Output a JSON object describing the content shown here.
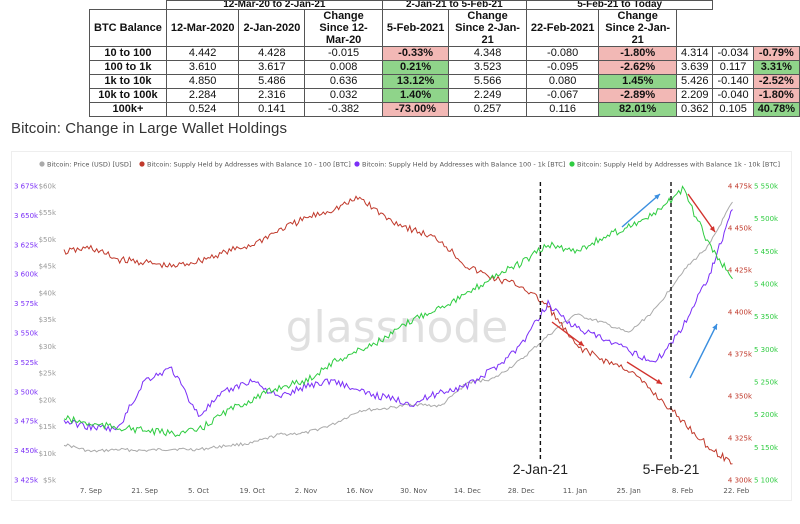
{
  "table": {
    "group_headers": [
      "12-Mar-20 to 2-Jan-21",
      "2-Jan-21 to 5-Feb-21",
      "5-Feb-21 to Today"
    ],
    "column_headers": [
      "BTC Balance",
      "12-Mar-2020",
      "2-Jan-2020",
      "Change Since 12-Mar-20",
      "5-Feb-2021",
      "Change Since 2-Jan-21",
      "22-Feb-2021",
      "Change Since 2-Jan-21"
    ],
    "rows": [
      {
        "balance": "10 to 100",
        "c1": "4.442",
        "c2": "4.428",
        "c3": "-0.015",
        "c4": "-0.33%",
        "c4s": "neg",
        "c5": "4.348",
        "c6": "-0.080",
        "c7": "-1.80%",
        "c7s": "neg",
        "c8": "4.314",
        "c9": "-0.034",
        "c10": "-0.79%",
        "c10s": "neg"
      },
      {
        "balance": "100 to 1k",
        "c1": "3.610",
        "c2": "3.617",
        "c3": "0.008",
        "c4": "0.21%",
        "c4s": "pos",
        "c5": "3.523",
        "c6": "-0.095",
        "c7": "-2.62%",
        "c7s": "neg",
        "c8": "3.639",
        "c9": "0.117",
        "c10": "3.31%",
        "c10s": "pos"
      },
      {
        "balance": "1k to 10k",
        "c1": "4.850",
        "c2": "5.486",
        "c3": "0.636",
        "c4": "13.12%",
        "c4s": "pos",
        "c5": "5.566",
        "c6": "0.080",
        "c7": "1.45%",
        "c7s": "pos",
        "c8": "5.426",
        "c9": "-0.140",
        "c10": "-2.52%",
        "c10s": "neg"
      },
      {
        "balance": "10k to 100k",
        "c1": "2.284",
        "c2": "2.316",
        "c3": "0.032",
        "c4": "1.40%",
        "c4s": "pos",
        "c5": "2.249",
        "c6": "-0.067",
        "c7": "-2.89%",
        "c7s": "neg",
        "c8": "2.209",
        "c9": "-0.040",
        "c10": "-1.80%",
        "c10s": "neg"
      },
      {
        "balance": "100k+",
        "c1": "0.524",
        "c2": "0.141",
        "c3": "-0.382",
        "c4": "-73.00%",
        "c4s": "neg",
        "c5": "0.257",
        "c6": "0.116",
        "c7": "82.01%",
        "c7s": "pos",
        "c8": "0.362",
        "c9": "0.105",
        "c10": "40.78%",
        "c10s": "pos"
      }
    ]
  },
  "heading": "Bitcoin: Change in Large Wallet Holdings",
  "chart_data": {
    "type": "line",
    "watermark": "glassnode",
    "legend": [
      {
        "name": "Bitcoin: Price (USD) [USD]",
        "color": "#aaaaaa"
      },
      {
        "name": "Bitcoin: Supply Held by Addresses with Balance 10 - 100 [BTC]",
        "color": "#c0392b"
      },
      {
        "name": "Bitcoin: Supply Held by Addresses with Balance 100 - 1k [BTC]",
        "color": "#7b2ff7"
      },
      {
        "name": "Bitcoin: Supply Held by Addresses with Balance 1k - 10k [BTC]",
        "color": "#2ecc40"
      }
    ],
    "x_ticks": [
      "7. Sep",
      "21. Sep",
      "5. Oct",
      "19. Oct",
      "2. Nov",
      "16. Nov",
      "30. Nov",
      "14. Dec",
      "28. Dec",
      "11. Jan",
      "25. Jan",
      "8. Feb",
      "22. Feb"
    ],
    "x_range": [
      "2020-08-31",
      "2021-02-24"
    ],
    "y_left_outer": {
      "color": "#7b2ff7",
      "ticks": [
        "3 425k",
        "3 450k",
        "3 475k",
        "3 500k",
        "3 525k",
        "3 550k",
        "3 575k",
        "3 600k",
        "3 625k",
        "3 650k",
        "3 675k"
      ],
      "range": [
        3425000,
        3675000
      ]
    },
    "y_left_inner": {
      "color": "#999999",
      "ticks": [
        "$5k",
        "$10k",
        "$15k",
        "$20k",
        "$25k",
        "$30k",
        "$35k",
        "$40k",
        "$45k",
        "$50k",
        "$55k",
        "$60k"
      ],
      "range": [
        5000,
        60000
      ]
    },
    "y_right_inner": {
      "color": "#c0392b",
      "ticks": [
        "4 300k",
        "4 325k",
        "4 350k",
        "4 375k",
        "4 400k",
        "4 425k",
        "4 450k",
        "4 475k"
      ],
      "range": [
        4300000,
        4500000
      ]
    },
    "y_right_outer": {
      "color": "#2ecc40",
      "ticks": [
        "5 100k",
        "5 150k",
        "5 200k",
        "5 250k",
        "5 300k",
        "5 350k",
        "5 400k",
        "5 450k",
        "5 500k",
        "5 550k"
      ],
      "range": [
        5100000,
        5575000
      ]
    },
    "markers": [
      {
        "date": "2021-01-02",
        "label": "2-Jan-21"
      },
      {
        "date": "2021-02-05",
        "label": "5-Feb-21"
      }
    ],
    "series": [
      {
        "key": "price",
        "axis": "y_left_inner",
        "color": "#aaaaaa",
        "x": [
          "2020-08-31",
          "2020-09-07",
          "2020-09-14",
          "2020-09-21",
          "2020-09-28",
          "2020-10-05",
          "2020-10-12",
          "2020-10-19",
          "2020-10-26",
          "2020-11-02",
          "2020-11-09",
          "2020-11-16",
          "2020-11-23",
          "2020-11-30",
          "2020-12-07",
          "2020-12-14",
          "2020-12-21",
          "2020-12-28",
          "2021-01-04",
          "2021-01-11",
          "2021-01-18",
          "2021-01-25",
          "2021-02-01",
          "2021-02-08",
          "2021-02-15",
          "2021-02-21"
        ],
        "y": [
          11700,
          10300,
          10700,
          10500,
          10800,
          10700,
          11400,
          11900,
          13500,
          13800,
          15400,
          18000,
          18400,
          19200,
          18800,
          23200,
          24000,
          27500,
          32000,
          36000,
          34500,
          32500,
          37000,
          44000,
          49000,
          57000
        ]
      },
      {
        "key": "s10_100",
        "axis": "y_right_inner",
        "color": "#c0392b",
        "x": [
          "2020-08-31",
          "2020-09-07",
          "2020-09-14",
          "2020-09-21",
          "2020-09-28",
          "2020-10-05",
          "2020-10-12",
          "2020-10-19",
          "2020-10-26",
          "2020-11-02",
          "2020-11-09",
          "2020-11-16",
          "2020-11-23",
          "2020-11-30",
          "2020-12-07",
          "2020-12-14",
          "2020-12-21",
          "2020-12-28",
          "2021-01-04",
          "2021-01-11",
          "2021-01-18",
          "2021-01-25",
          "2021-02-01",
          "2021-02-08",
          "2021-02-15",
          "2021-02-21"
        ],
        "y": [
          4455000,
          4458000,
          4450000,
          4448000,
          4445000,
          4449000,
          4455000,
          4460000,
          4470000,
          4478000,
          4484000,
          4492000,
          4478000,
          4470000,
          4463000,
          4445000,
          4437000,
          4432000,
          4418000,
          4392000,
          4382000,
          4375000,
          4358000,
          4340000,
          4322000,
          4311000
        ]
      },
      {
        "key": "s100_1k",
        "axis": "y_left_outer",
        "color": "#7b2ff7",
        "x": [
          "2020-08-31",
          "2020-09-07",
          "2020-09-14",
          "2020-09-21",
          "2020-09-28",
          "2020-10-05",
          "2020-10-12",
          "2020-10-19",
          "2020-10-26",
          "2020-11-02",
          "2020-11-09",
          "2020-11-16",
          "2020-11-23",
          "2020-11-30",
          "2020-12-07",
          "2020-12-14",
          "2020-12-21",
          "2020-12-28",
          "2021-01-04",
          "2021-01-11",
          "2021-01-18",
          "2021-01-25",
          "2021-02-01",
          "2021-02-08",
          "2021-02-15",
          "2021-02-21"
        ],
        "y": [
          3475000,
          3470000,
          3468000,
          3510000,
          3520000,
          3480000,
          3500000,
          3510000,
          3495000,
          3505000,
          3510000,
          3500000,
          3495000,
          3490000,
          3500000,
          3505000,
          3520000,
          3540000,
          3575000,
          3555000,
          3545000,
          3535000,
          3525000,
          3555000,
          3600000,
          3655000
        ]
      },
      {
        "key": "s1k_10k",
        "axis": "y_right_outer",
        "color": "#2ecc40",
        "x": [
          "2020-08-31",
          "2020-09-07",
          "2020-09-14",
          "2020-09-21",
          "2020-09-28",
          "2020-10-05",
          "2020-10-12",
          "2020-10-19",
          "2020-10-26",
          "2020-11-02",
          "2020-11-09",
          "2020-11-16",
          "2020-11-23",
          "2020-11-30",
          "2020-12-07",
          "2020-12-14",
          "2020-12-21",
          "2020-12-28",
          "2021-01-04",
          "2021-01-11",
          "2021-01-18",
          "2021-01-25",
          "2021-02-01",
          "2021-02-08",
          "2021-02-15",
          "2021-02-21"
        ],
        "y": [
          5200000,
          5190000,
          5185000,
          5180000,
          5175000,
          5180000,
          5210000,
          5230000,
          5250000,
          5260000,
          5290000,
          5310000,
          5330000,
          5360000,
          5380000,
          5400000,
          5430000,
          5450000,
          5480000,
          5470000,
          5490000,
          5510000,
          5530000,
          5570000,
          5480000,
          5425000
        ]
      }
    ]
  }
}
